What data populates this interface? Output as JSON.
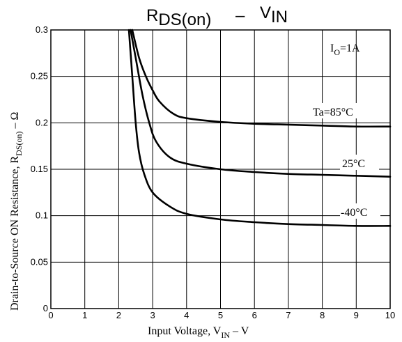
{
  "chart_data": {
    "type": "line",
    "title": {
      "main": "R",
      "main_sub": "DS(on)",
      "dash": "–",
      "right": "V",
      "right_sub": "IN"
    },
    "xlabel": {
      "prefix": "Input Voltage, V",
      "sub": "IN",
      "suffix": " –  V"
    },
    "ylabel": {
      "prefix": "Drain-to-Source ON Resistance, R",
      "sub": "DS(on)",
      "suffix": "  –  Ω"
    },
    "condition": {
      "prefix": "I",
      "sub": "O",
      "suffix": "=1A"
    },
    "xlim": [
      0,
      10
    ],
    "ylim": [
      0,
      0.3
    ],
    "x_ticks": [
      "0",
      "1",
      "2",
      "3",
      "4",
      "5",
      "6",
      "7",
      "8",
      "9",
      "10"
    ],
    "y_ticks": [
      "0",
      "0.05",
      "0.1",
      "0.15",
      "0.2",
      "0.25",
      "0.3"
    ],
    "grid": true,
    "series": [
      {
        "name": "Ta=85°C",
        "points": [
          [
            2.4,
            0.3
          ],
          [
            2.6,
            0.27
          ],
          [
            2.8,
            0.25
          ],
          [
            3.0,
            0.235
          ],
          [
            3.2,
            0.223
          ],
          [
            3.6,
            0.21
          ],
          [
            4.0,
            0.205
          ],
          [
            5.0,
            0.201
          ],
          [
            6.0,
            0.199
          ],
          [
            7.0,
            0.198
          ],
          [
            8.0,
            0.197
          ],
          [
            9.0,
            0.196
          ],
          [
            10.0,
            0.196
          ]
        ]
      },
      {
        "name": "25°C",
        "points": [
          [
            2.35,
            0.3
          ],
          [
            2.5,
            0.27
          ],
          [
            2.7,
            0.23
          ],
          [
            2.9,
            0.2
          ],
          [
            3.1,
            0.18
          ],
          [
            3.5,
            0.163
          ],
          [
            4.0,
            0.156
          ],
          [
            5.0,
            0.15
          ],
          [
            6.0,
            0.147
          ],
          [
            7.0,
            0.145
          ],
          [
            8.0,
            0.144
          ],
          [
            9.0,
            0.143
          ],
          [
            10.0,
            0.142
          ]
        ]
      },
      {
        "name": "-40°C",
        "points": [
          [
            2.3,
            0.3
          ],
          [
            2.4,
            0.25
          ],
          [
            2.5,
            0.2
          ],
          [
            2.6,
            0.168
          ],
          [
            2.75,
            0.145
          ],
          [
            3.0,
            0.125
          ],
          [
            3.5,
            0.11
          ],
          [
            4.0,
            0.102
          ],
          [
            5.0,
            0.096
          ],
          [
            6.0,
            0.093
          ],
          [
            7.0,
            0.091
          ],
          [
            8.0,
            0.09
          ],
          [
            9.0,
            0.089
          ],
          [
            10.0,
            0.089
          ]
        ]
      }
    ]
  }
}
